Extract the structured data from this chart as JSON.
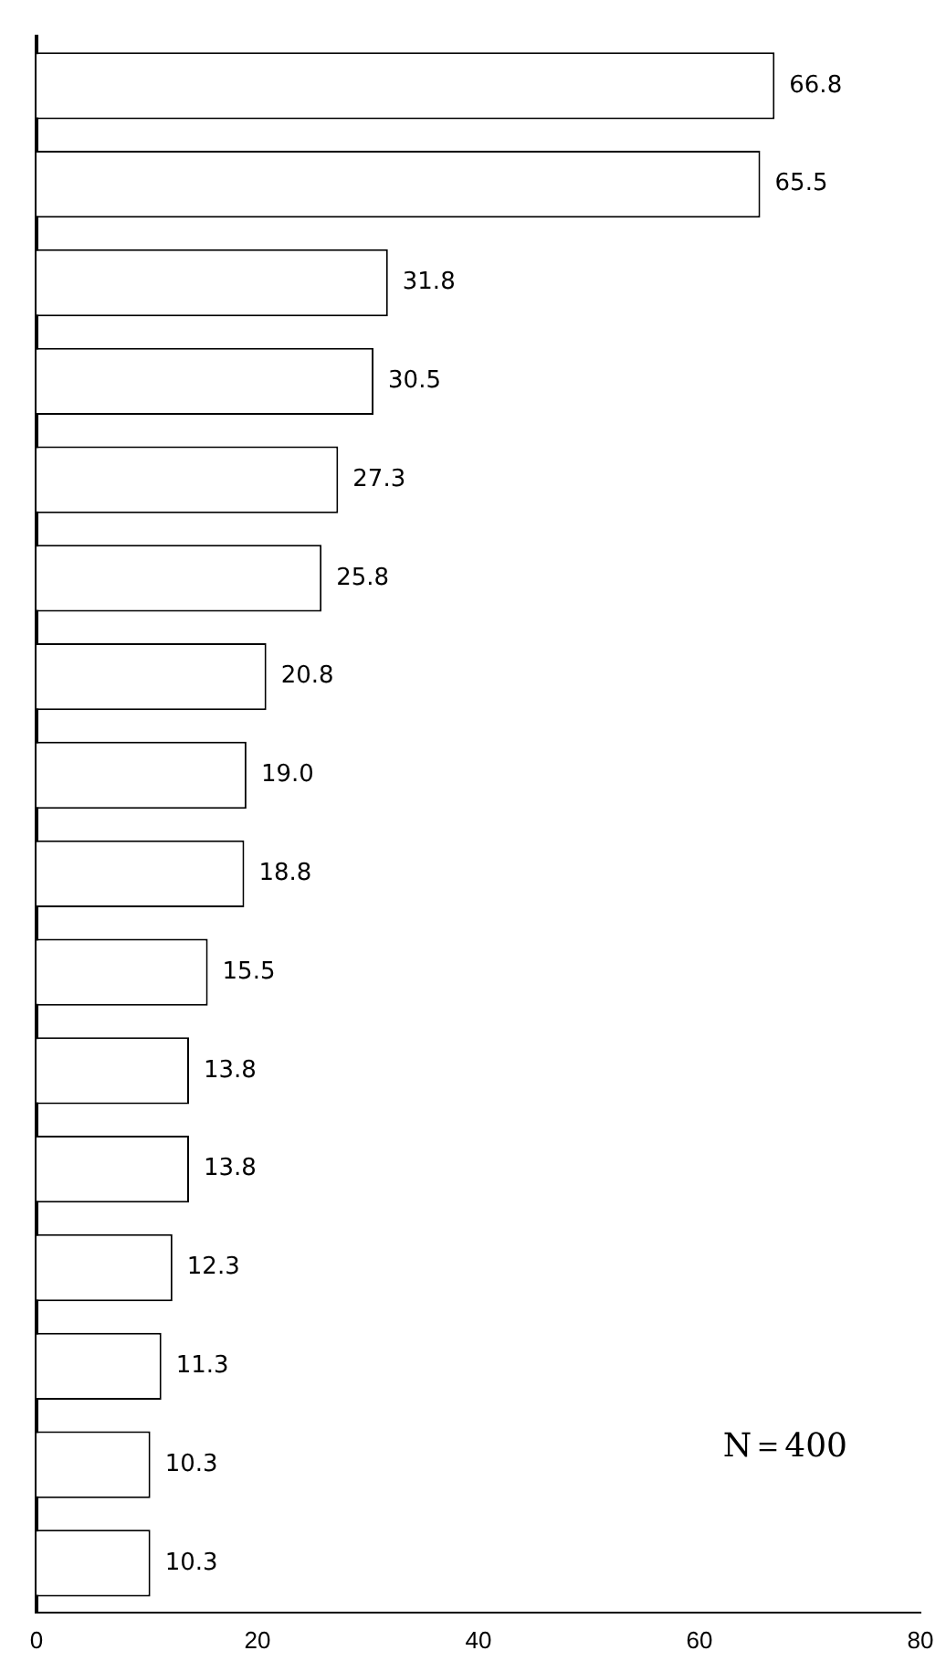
{
  "chart_data": {
    "type": "bar",
    "orientation": "horizontal",
    "categories": [
      null,
      null,
      null,
      null,
      null,
      null,
      null,
      null,
      null,
      null,
      null,
      null,
      null,
      null,
      null,
      null
    ],
    "values": [
      66.8,
      65.5,
      31.8,
      30.5,
      27.3,
      25.8,
      20.8,
      19.0,
      18.8,
      15.5,
      13.8,
      13.8,
      12.3,
      11.3,
      10.3,
      10.3
    ],
    "value_labels": [
      "66.8",
      "65.5",
      "31.8",
      "30.5",
      "27.3",
      "25.8",
      "20.8",
      "19.0",
      "18.8",
      "15.5",
      "13.8",
      "13.8",
      "12.3",
      "11.3",
      "10.3",
      "10.3"
    ],
    "color": "#ffffff",
    "xlim": [
      0,
      80
    ],
    "xticks": [
      0,
      20,
      40,
      60,
      80
    ],
    "grid": false,
    "legend": false,
    "tick_labels": "x",
    "annotations": [
      "N＝400"
    ]
  }
}
